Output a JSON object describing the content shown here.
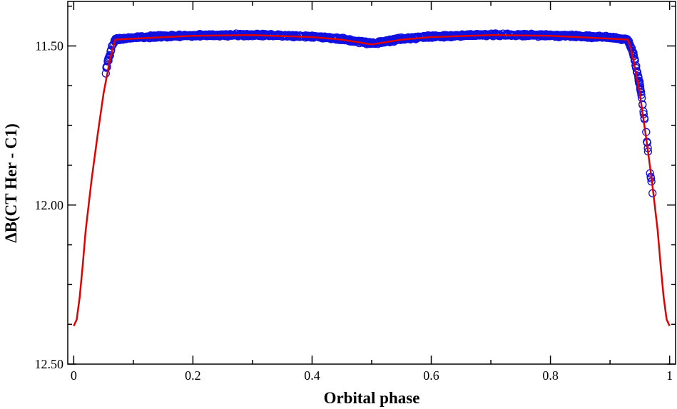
{
  "chart_data": {
    "type": "scatter",
    "xlabel": "Orbital phase",
    "ylabel": "ΔB(CT Her - C1)",
    "xlim": [
      -0.01,
      1.01
    ],
    "ylim": [
      12.5,
      11.36
    ],
    "y_inverted": true,
    "x_ticks": [
      0,
      0.2,
      0.4,
      0.6,
      0.8,
      1
    ],
    "x_tick_labels": [
      "0",
      "0.2",
      "0.4",
      "0.6",
      "0.8",
      "1"
    ],
    "y_ticks": [
      11.5,
      12.0,
      12.5
    ],
    "y_tick_labels": [
      "11.50",
      "12.00",
      "12.50"
    ],
    "grid": false,
    "legend": "none",
    "colors": {
      "observed": "#1010e0",
      "model": "#e00000"
    },
    "series": [
      {
        "kind": "observed points (open circles)",
        "x_range": [
          0.053,
          0.972
        ],
        "approx_profile": [
          [
            0.053,
            11.59
          ],
          [
            0.056,
            11.56
          ],
          [
            0.06,
            11.53
          ],
          [
            0.065,
            11.5
          ],
          [
            0.07,
            11.48
          ],
          [
            0.1,
            11.473
          ],
          [
            0.2,
            11.467
          ],
          [
            0.3,
            11.465
          ],
          [
            0.4,
            11.47
          ],
          [
            0.45,
            11.478
          ],
          [
            0.5,
            11.492
          ],
          [
            0.55,
            11.478
          ],
          [
            0.6,
            11.47
          ],
          [
            0.7,
            11.465
          ],
          [
            0.8,
            11.467
          ],
          [
            0.9,
            11.473
          ],
          [
            0.93,
            11.48
          ],
          [
            0.94,
            11.53
          ],
          [
            0.95,
            11.62
          ],
          [
            0.96,
            11.76
          ],
          [
            0.965,
            11.86
          ],
          [
            0.972,
            11.97
          ]
        ]
      },
      {
        "kind": "model curve (solid line)",
        "points": [
          [
            0.0,
            12.38
          ],
          [
            0.005,
            12.36
          ],
          [
            0.01,
            12.29
          ],
          [
            0.015,
            12.19
          ],
          [
            0.02,
            12.08
          ],
          [
            0.03,
            11.92
          ],
          [
            0.04,
            11.78
          ],
          [
            0.05,
            11.65
          ],
          [
            0.055,
            11.6
          ],
          [
            0.06,
            11.55
          ],
          [
            0.065,
            11.51
          ],
          [
            0.07,
            11.48
          ],
          [
            0.1,
            11.477
          ],
          [
            0.2,
            11.468
          ],
          [
            0.3,
            11.466
          ],
          [
            0.4,
            11.472
          ],
          [
            0.45,
            11.48
          ],
          [
            0.5,
            11.495
          ],
          [
            0.55,
            11.48
          ],
          [
            0.6,
            11.472
          ],
          [
            0.7,
            11.466
          ],
          [
            0.8,
            11.468
          ],
          [
            0.9,
            11.477
          ],
          [
            0.93,
            11.48
          ],
          [
            0.935,
            11.51
          ],
          [
            0.94,
            11.55
          ],
          [
            0.945,
            11.6
          ],
          [
            0.95,
            11.65
          ],
          [
            0.96,
            11.78
          ],
          [
            0.97,
            11.92
          ],
          [
            0.98,
            12.08
          ],
          [
            0.985,
            12.19
          ],
          [
            0.99,
            12.29
          ],
          [
            0.995,
            12.36
          ],
          [
            1.0,
            12.38
          ]
        ]
      }
    ]
  }
}
